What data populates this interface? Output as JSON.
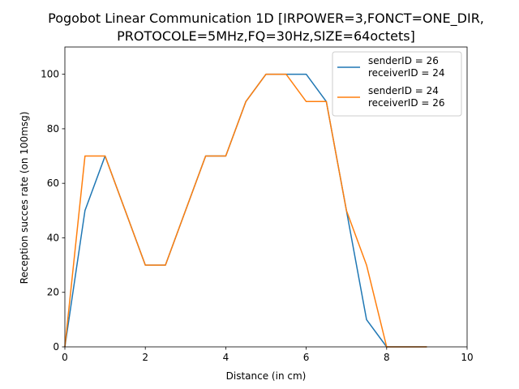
{
  "chart_data": {
    "type": "line",
    "title": "Pogobot Linear Communication 1D [IRPOWER=3,FONCT=ONE_DIR,",
    "subtitle": "PROTOCOLE=5MHz,FQ=30Hz,SIZE=64octets]",
    "xlabel": "Distance (in cm)",
    "ylabel": "Reception succes rate (on 100msg)",
    "xlim": [
      0,
      10
    ],
    "ylim": [
      0,
      110
    ],
    "xticks": [
      0,
      2,
      4,
      6,
      8,
      10
    ],
    "yticks": [
      0,
      20,
      40,
      60,
      80,
      100
    ],
    "grid": false,
    "legend_position": "top-right",
    "series": [
      {
        "legend_line1": "senderID = 26",
        "legend_line2": "receiverID = 24",
        "color": "#1f77b4",
        "x": [
          0,
          0.5,
          1,
          1.5,
          2,
          2.5,
          3,
          3.5,
          4,
          4.5,
          5,
          5.5,
          6,
          6.5,
          7,
          7.5,
          8,
          8.5,
          9
        ],
        "y": [
          0,
          50,
          70,
          50,
          30,
          30,
          50,
          70,
          70,
          90,
          100,
          100,
          100,
          90,
          50,
          10,
          0,
          0,
          0
        ]
      },
      {
        "legend_line1": "senderID = 24",
        "legend_line2": "receiverID = 26",
        "color": "#ff7f0e",
        "x": [
          0,
          0.5,
          1,
          1.5,
          2,
          2.5,
          3,
          3.5,
          4,
          4.5,
          5,
          5.5,
          6,
          6.5,
          7,
          7.5,
          8,
          8.5,
          9
        ],
        "y": [
          0,
          70,
          70,
          50,
          30,
          30,
          50,
          70,
          70,
          90,
          100,
          100,
          90,
          90,
          50,
          30,
          0,
          0,
          0
        ]
      }
    ]
  }
}
